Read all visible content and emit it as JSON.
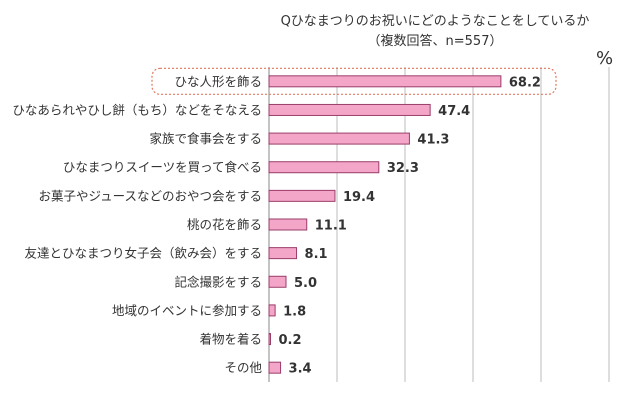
{
  "chart_data": {
    "type": "bar",
    "orientation": "horizontal",
    "title": "Qひなまつりのお祝いにどのようなことをしているか",
    "subtitle": "（複数回答、n=557）",
    "unit": "%",
    "xlim": [
      0,
      100
    ],
    "grid": true,
    "categories": [
      "ひな人形を飾る",
      "ひなあられやひし餅（もち）などをそなえる",
      "家族で食事会をする",
      "ひなまつりスイーツを買って食べる",
      "お菓子やジュースなどのおやつ会をする",
      "桃の花を飾る",
      "友達とひなまつり女子会（飲み会）をする",
      "記念撮影をする",
      "地域のイベントに参加する",
      "着物を着る",
      "その他"
    ],
    "values": [
      68.2,
      47.4,
      41.3,
      32.3,
      19.4,
      11.1,
      8.1,
      5.0,
      1.8,
      0.2,
      3.4
    ],
    "value_labels": [
      "68.2",
      "47.4",
      "41.3",
      "32.3",
      "19.4",
      "11.1",
      "8.1",
      "5.0",
      "1.8",
      "0.2",
      "3.4"
    ],
    "highlight_index": 0,
    "colors": {
      "bar_fill": "#f4a6c8",
      "bar_stroke": "#9a3d6a",
      "highlight": "#e07a5f",
      "grid": "#bdbdbd"
    }
  }
}
